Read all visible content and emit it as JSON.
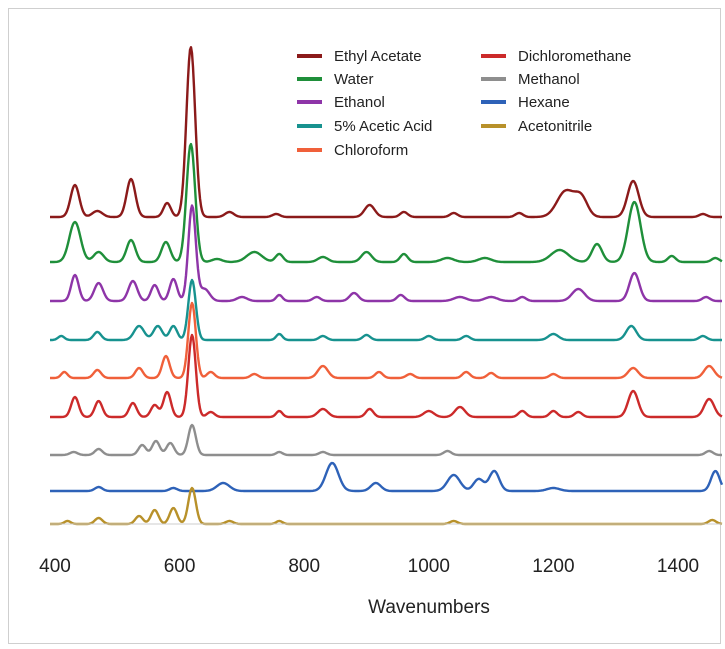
{
  "chart_data": {
    "type": "line",
    "title": "",
    "xlabel": "Wavenumbers",
    "ylabel": "",
    "xlim": [
      400,
      1480
    ],
    "xticks": [
      400,
      600,
      800,
      1000,
      1200,
      1400
    ],
    "grid": false,
    "legend_position": "top-right",
    "series": [
      {
        "name": "Ethyl Acetate",
        "color": "#8b1a1a",
        "peaks": [
          [
            432,
            32,
            7
          ],
          [
            468,
            6,
            8
          ],
          [
            522,
            38,
            7
          ],
          [
            580,
            14,
            6
          ],
          [
            618,
            170,
            7
          ],
          [
            680,
            5,
            7
          ],
          [
            755,
            3,
            6
          ],
          [
            905,
            12,
            8
          ],
          [
            960,
            5,
            6
          ],
          [
            1040,
            4,
            6
          ],
          [
            1145,
            4,
            6
          ],
          [
            1220,
            26,
            14
          ],
          [
            1245,
            18,
            10
          ],
          [
            1328,
            36,
            9
          ],
          [
            1440,
            3,
            6
          ]
        ]
      },
      {
        "name": "Water",
        "color": "#1f8f3a",
        "peaks": [
          [
            432,
            40,
            9
          ],
          [
            470,
            10,
            8
          ],
          [
            522,
            22,
            7
          ],
          [
            578,
            20,
            7
          ],
          [
            618,
            118,
            7
          ],
          [
            660,
            3,
            8
          ],
          [
            720,
            10,
            12
          ],
          [
            760,
            8,
            6
          ],
          [
            830,
            5,
            8
          ],
          [
            900,
            10,
            8
          ],
          [
            960,
            8,
            6
          ],
          [
            1030,
            4,
            10
          ],
          [
            1090,
            4,
            10
          ],
          [
            1210,
            12,
            14
          ],
          [
            1270,
            18,
            8
          ],
          [
            1330,
            60,
            10
          ],
          [
            1390,
            6,
            6
          ],
          [
            1460,
            4,
            6
          ]
        ]
      },
      {
        "name": "Ethanol",
        "color": "#8e35a8",
        "peaks": [
          [
            432,
            26,
            6
          ],
          [
            470,
            18,
            7
          ],
          [
            525,
            20,
            7
          ],
          [
            560,
            16,
            6
          ],
          [
            590,
            22,
            6
          ],
          [
            620,
            95,
            6
          ],
          [
            640,
            12,
            8
          ],
          [
            700,
            4,
            8
          ],
          [
            760,
            6,
            5
          ],
          [
            820,
            4,
            6
          ],
          [
            880,
            8,
            7
          ],
          [
            955,
            6,
            6
          ],
          [
            1050,
            4,
            10
          ],
          [
            1100,
            4,
            10
          ],
          [
            1150,
            4,
            6
          ],
          [
            1240,
            12,
            10
          ],
          [
            1330,
            28,
            8
          ],
          [
            1445,
            4,
            6
          ]
        ]
      },
      {
        "name": "5% Acetic Acid",
        "color": "#17928f",
        "peaks": [
          [
            410,
            4,
            5
          ],
          [
            468,
            8,
            6
          ],
          [
            535,
            14,
            8
          ],
          [
            565,
            14,
            7
          ],
          [
            590,
            14,
            6
          ],
          [
            620,
            60,
            6
          ],
          [
            760,
            6,
            5
          ],
          [
            830,
            4,
            6
          ],
          [
            900,
            5,
            6
          ],
          [
            1000,
            4,
            6
          ],
          [
            1060,
            4,
            6
          ],
          [
            1200,
            6,
            8
          ],
          [
            1325,
            14,
            8
          ],
          [
            1440,
            4,
            6
          ]
        ]
      },
      {
        "name": "Chloroform",
        "color": "#f0603a",
        "peaks": [
          [
            415,
            6,
            5
          ],
          [
            468,
            8,
            6
          ],
          [
            535,
            10,
            6
          ],
          [
            578,
            22,
            6
          ],
          [
            620,
            75,
            6
          ],
          [
            650,
            6,
            6
          ],
          [
            720,
            4,
            6
          ],
          [
            830,
            12,
            8
          ],
          [
            920,
            6,
            6
          ],
          [
            970,
            4,
            6
          ],
          [
            1060,
            6,
            6
          ],
          [
            1100,
            5,
            6
          ],
          [
            1200,
            4,
            6
          ],
          [
            1328,
            10,
            8
          ],
          [
            1450,
            12,
            8
          ]
        ]
      },
      {
        "name": "Dichloromethane",
        "color": "#cc2a2a",
        "peaks": [
          [
            432,
            20,
            6
          ],
          [
            470,
            16,
            6
          ],
          [
            525,
            14,
            6
          ],
          [
            560,
            12,
            6
          ],
          [
            580,
            25,
            6
          ],
          [
            620,
            82,
            6
          ],
          [
            650,
            5,
            6
          ],
          [
            760,
            6,
            5
          ],
          [
            830,
            8,
            8
          ],
          [
            905,
            8,
            6
          ],
          [
            1000,
            6,
            8
          ],
          [
            1050,
            10,
            8
          ],
          [
            1150,
            6,
            6
          ],
          [
            1200,
            6,
            6
          ],
          [
            1240,
            5,
            6
          ],
          [
            1328,
            26,
            8
          ],
          [
            1450,
            18,
            8
          ]
        ]
      },
      {
        "name": "Methanol",
        "color": "#8e8e8e",
        "peaks": [
          [
            430,
            3,
            6
          ],
          [
            470,
            6,
            6
          ],
          [
            540,
            10,
            6
          ],
          [
            562,
            14,
            6
          ],
          [
            585,
            12,
            6
          ],
          [
            620,
            30,
            6
          ],
          [
            760,
            3,
            5
          ],
          [
            830,
            3,
            6
          ],
          [
            1030,
            4,
            6
          ],
          [
            1450,
            4,
            6
          ]
        ]
      },
      {
        "name": "Hexane",
        "color": "#2e62b8",
        "peaks": [
          [
            470,
            4,
            6
          ],
          [
            590,
            3,
            6
          ],
          [
            670,
            8,
            10
          ],
          [
            845,
            28,
            10
          ],
          [
            915,
            8,
            8
          ],
          [
            1040,
            16,
            10
          ],
          [
            1080,
            12,
            8
          ],
          [
            1105,
            20,
            8
          ],
          [
            1200,
            3,
            10
          ],
          [
            1460,
            20,
            7
          ]
        ]
      },
      {
        "name": "Acetonitrile",
        "color": "#b8912a",
        "peaks": [
          [
            420,
            3,
            5
          ],
          [
            470,
            6,
            6
          ],
          [
            535,
            8,
            6
          ],
          [
            560,
            14,
            6
          ],
          [
            590,
            16,
            6
          ],
          [
            620,
            36,
            6
          ],
          [
            680,
            3,
            6
          ],
          [
            760,
            3,
            5
          ],
          [
            1040,
            3,
            6
          ],
          [
            1455,
            4,
            6
          ]
        ]
      }
    ],
    "baselines": [
      217,
      262,
      301,
      340,
      378,
      417,
      455,
      491,
      524
    ]
  }
}
